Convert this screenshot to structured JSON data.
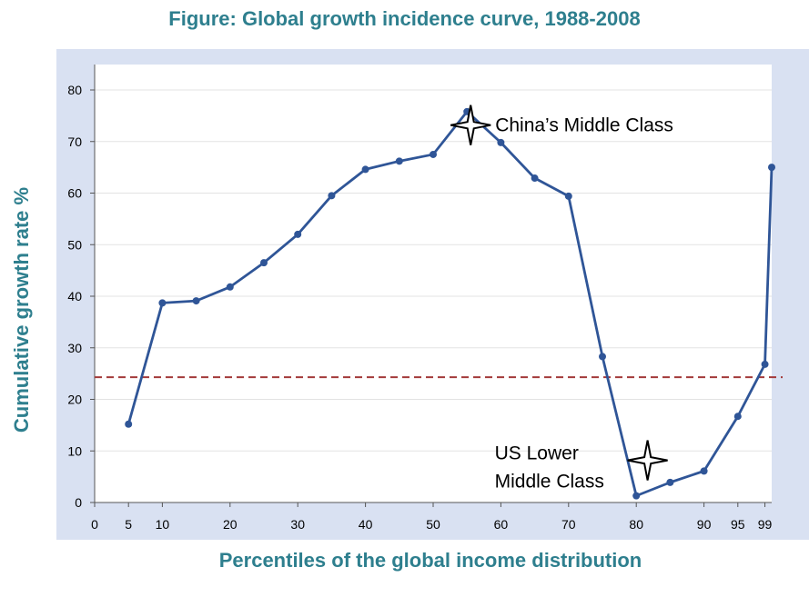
{
  "chart_data": {
    "type": "line",
    "title": "Figure:  Global growth incidence curve, 1988-2008",
    "xlabel": "Percentiles of the global income distribution",
    "ylabel": "Cumulative growth rate %",
    "x_ticks": [
      0,
      5,
      10,
      20,
      30,
      40,
      50,
      60,
      70,
      80,
      90,
      95,
      99
    ],
    "y_ticks": [
      0,
      10,
      20,
      30,
      40,
      50,
      60,
      70,
      80
    ],
    "xlim": [
      0,
      100
    ],
    "ylim": [
      0,
      80
    ],
    "grid": "horizontal",
    "series": [
      {
        "x": [
          5,
          10,
          15,
          20,
          25,
          30,
          35,
          40,
          45,
          50,
          55,
          60,
          65,
          70,
          75,
          80,
          85,
          90,
          95,
          99,
          100
        ],
        "y": [
          15.2,
          38.7,
          39.1,
          41.8,
          46.5,
          52.0,
          59.5,
          64.6,
          66.2,
          67.5,
          75.8,
          69.8,
          62.9,
          59.4,
          28.3,
          1.3,
          3.9,
          6.1,
          16.7,
          26.8,
          65.0
        ],
        "color": "#2f5597"
      }
    ],
    "reference_line": {
      "y": 24.3,
      "style": "dashed",
      "color": "#a33a3a"
    },
    "annotations": [
      {
        "text": "China’s Middle Class",
        "x": 55,
        "y": 73,
        "marker": "four-point-star"
      },
      {
        "text": "US Lower",
        "text2": "Middle Class",
        "x": 81,
        "y": 8,
        "marker": "four-point-star"
      }
    ]
  }
}
